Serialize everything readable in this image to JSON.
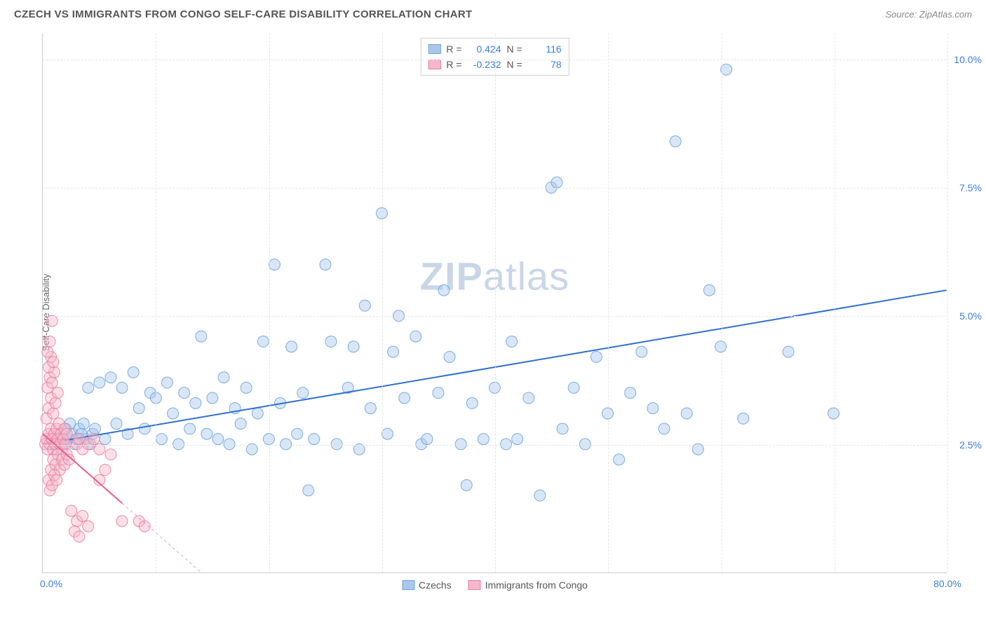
{
  "header": {
    "title": "CZECH VS IMMIGRANTS FROM CONGO SELF-CARE DISABILITY CORRELATION CHART",
    "source_prefix": "Source: ",
    "source_name": "ZipAtlas.com"
  },
  "ylabel": "Self-Care Disability",
  "watermark": {
    "bold": "ZIP",
    "light": "atlas"
  },
  "chart": {
    "type": "scatter",
    "xlim": [
      0,
      80
    ],
    "ylim": [
      0,
      10.5
    ],
    "x_ticks": [
      0,
      10,
      20,
      30,
      40,
      50,
      60,
      70,
      80
    ],
    "y_ticks": [
      2.5,
      5.0,
      7.5,
      10.0
    ],
    "x_tick_labels": [
      "0.0%",
      "",
      "",
      "",
      "",
      "",
      "",
      "",
      "80.0%"
    ],
    "y_tick_labels": [
      "2.5%",
      "5.0%",
      "7.5%",
      "10.0%"
    ],
    "background_color": "#ffffff",
    "grid_color": "#e5e5e5",
    "axis_color": "#cccccc",
    "tick_label_color": "#3b7dd8",
    "marker_radius": 8,
    "marker_opacity": 0.45,
    "marker_stroke_opacity": 0.9,
    "line_width": 2,
    "series": [
      {
        "name": "Czechs",
        "color_fill": "#a9c7ec",
        "color_stroke": "#6fa3df",
        "line_color": "#2f6fd0",
        "R": "0.424",
        "N": "116",
        "regression": {
          "x1": 0,
          "y1": 2.5,
          "x2": 80,
          "y2": 5.5,
          "dashed_after_x": null
        },
        "points": [
          [
            0.8,
            2.6
          ],
          [
            1.0,
            2.5
          ],
          [
            1.2,
            2.4
          ],
          [
            1.4,
            2.7
          ],
          [
            1.6,
            2.6
          ],
          [
            1.8,
            2.5
          ],
          [
            2.0,
            2.8
          ],
          [
            2.2,
            2.6
          ],
          [
            2.4,
            2.9
          ],
          [
            2.6,
            2.7
          ],
          [
            2.8,
            2.5
          ],
          [
            3.0,
            2.6
          ],
          [
            3.2,
            2.8
          ],
          [
            3.4,
            2.7
          ],
          [
            3.6,
            2.9
          ],
          [
            3.8,
            2.6
          ],
          [
            4.0,
            3.6
          ],
          [
            4.2,
            2.5
          ],
          [
            4.4,
            2.7
          ],
          [
            4.6,
            2.8
          ],
          [
            5.0,
            3.7
          ],
          [
            5.5,
            2.6
          ],
          [
            6.0,
            3.8
          ],
          [
            6.5,
            2.9
          ],
          [
            7.0,
            3.6
          ],
          [
            7.5,
            2.7
          ],
          [
            8.0,
            3.9
          ],
          [
            8.5,
            3.2
          ],
          [
            9.0,
            2.8
          ],
          [
            9.5,
            3.5
          ],
          [
            10.0,
            3.4
          ],
          [
            10.5,
            2.6
          ],
          [
            11.0,
            3.7
          ],
          [
            11.5,
            3.1
          ],
          [
            12.0,
            2.5
          ],
          [
            12.5,
            3.5
          ],
          [
            13.0,
            2.8
          ],
          [
            13.5,
            3.3
          ],
          [
            14.0,
            4.6
          ],
          [
            14.5,
            2.7
          ],
          [
            15.0,
            3.4
          ],
          [
            15.5,
            2.6
          ],
          [
            16.0,
            3.8
          ],
          [
            16.5,
            2.5
          ],
          [
            17.0,
            3.2
          ],
          [
            17.5,
            2.9
          ],
          [
            18.0,
            3.6
          ],
          [
            18.5,
            2.4
          ],
          [
            19.0,
            3.1
          ],
          [
            19.5,
            4.5
          ],
          [
            20.0,
            2.6
          ],
          [
            20.5,
            6.0
          ],
          [
            21.0,
            3.3
          ],
          [
            21.5,
            2.5
          ],
          [
            22.0,
            4.4
          ],
          [
            22.5,
            2.7
          ],
          [
            23.0,
            3.5
          ],
          [
            23.5,
            1.6
          ],
          [
            24.0,
            2.6
          ],
          [
            25.0,
            6.0
          ],
          [
            25.5,
            4.5
          ],
          [
            26.0,
            2.5
          ],
          [
            27.0,
            3.6
          ],
          [
            27.5,
            4.4
          ],
          [
            28.0,
            2.4
          ],
          [
            28.5,
            5.2
          ],
          [
            29.0,
            3.2
          ],
          [
            30.0,
            7.0
          ],
          [
            30.5,
            2.7
          ],
          [
            31.0,
            4.3
          ],
          [
            31.5,
            5.0
          ],
          [
            32.0,
            3.4
          ],
          [
            33.0,
            4.6
          ],
          [
            33.5,
            2.5
          ],
          [
            34.0,
            2.6
          ],
          [
            35.0,
            3.5
          ],
          [
            35.5,
            5.5
          ],
          [
            36.0,
            4.2
          ],
          [
            37.0,
            2.5
          ],
          [
            37.5,
            1.7
          ],
          [
            38.0,
            3.3
          ],
          [
            39.0,
            2.6
          ],
          [
            40.0,
            3.6
          ],
          [
            41.0,
            2.5
          ],
          [
            41.5,
            4.5
          ],
          [
            42.0,
            2.6
          ],
          [
            43.0,
            3.4
          ],
          [
            44.0,
            1.5
          ],
          [
            45.0,
            7.5
          ],
          [
            45.5,
            7.6
          ],
          [
            46.0,
            2.8
          ],
          [
            47.0,
            3.6
          ],
          [
            48.0,
            2.5
          ],
          [
            49.0,
            4.2
          ],
          [
            50.0,
            3.1
          ],
          [
            51.0,
            2.2
          ],
          [
            52.0,
            3.5
          ],
          [
            53.0,
            4.3
          ],
          [
            54.0,
            3.2
          ],
          [
            55.0,
            2.8
          ],
          [
            56.0,
            8.4
          ],
          [
            57.0,
            3.1
          ],
          [
            58.0,
            2.4
          ],
          [
            59.0,
            5.5
          ],
          [
            60.0,
            4.4
          ],
          [
            60.5,
            9.8
          ],
          [
            62.0,
            3.0
          ],
          [
            66.0,
            4.3
          ],
          [
            70.0,
            3.1
          ]
        ]
      },
      {
        "name": "Immigrants from Congo",
        "color_fill": "#f5b8ca",
        "color_stroke": "#ec7da0",
        "line_color": "#e85d8a",
        "R": "-0.232",
        "N": "78",
        "regression": {
          "x1": 0,
          "y1": 2.7,
          "x2": 14,
          "y2": 0,
          "dashed_after_x": 7
        },
        "points": [
          [
            0.2,
            2.5
          ],
          [
            0.3,
            2.6
          ],
          [
            0.4,
            2.4
          ],
          [
            0.5,
            2.7
          ],
          [
            0.6,
            2.5
          ],
          [
            0.7,
            2.8
          ],
          [
            0.8,
            2.6
          ],
          [
            0.9,
            2.4
          ],
          [
            1.0,
            2.7
          ],
          [
            1.1,
            2.5
          ],
          [
            1.2,
            2.8
          ],
          [
            1.3,
            2.6
          ],
          [
            1.4,
            2.9
          ],
          [
            1.5,
            2.5
          ],
          [
            1.6,
            2.7
          ],
          [
            1.7,
            2.4
          ],
          [
            1.8,
            2.6
          ],
          [
            1.9,
            2.8
          ],
          [
            2.0,
            2.5
          ],
          [
            2.1,
            2.7
          ],
          [
            0.3,
            3.0
          ],
          [
            0.5,
            3.2
          ],
          [
            0.7,
            3.4
          ],
          [
            0.9,
            3.1
          ],
          [
            1.1,
            3.3
          ],
          [
            1.3,
            3.5
          ],
          [
            0.4,
            3.6
          ],
          [
            0.6,
            3.8
          ],
          [
            0.8,
            3.7
          ],
          [
            1.0,
            3.9
          ],
          [
            0.5,
            4.0
          ],
          [
            0.7,
            4.2
          ],
          [
            0.9,
            4.1
          ],
          [
            0.4,
            4.3
          ],
          [
            0.6,
            4.5
          ],
          [
            0.8,
            4.9
          ],
          [
            0.5,
            1.8
          ],
          [
            0.7,
            2.0
          ],
          [
            0.9,
            2.2
          ],
          [
            1.1,
            2.1
          ],
          [
            1.3,
            2.3
          ],
          [
            1.5,
            2.0
          ],
          [
            1.7,
            2.2
          ],
          [
            1.9,
            2.1
          ],
          [
            2.1,
            2.3
          ],
          [
            2.3,
            2.2
          ],
          [
            0.6,
            1.6
          ],
          [
            0.8,
            1.7
          ],
          [
            1.0,
            1.9
          ],
          [
            1.2,
            1.8
          ],
          [
            3.0,
            2.5
          ],
          [
            3.2,
            2.6
          ],
          [
            3.5,
            2.4
          ],
          [
            4.0,
            2.5
          ],
          [
            4.5,
            2.6
          ],
          [
            5.0,
            2.4
          ],
          [
            3.0,
            1.0
          ],
          [
            3.5,
            1.1
          ],
          [
            2.8,
            0.8
          ],
          [
            4.0,
            0.9
          ],
          [
            3.2,
            0.7
          ],
          [
            2.5,
            1.2
          ],
          [
            5.0,
            1.8
          ],
          [
            5.5,
            2.0
          ],
          [
            6.0,
            2.3
          ],
          [
            7.0,
            1.0
          ],
          [
            8.5,
            1.0
          ],
          [
            9.0,
            0.9
          ]
        ]
      }
    ]
  },
  "legend_top": {
    "r_label": "R =",
    "n_label": "N ="
  },
  "legend_bottom": {
    "items": [
      "Czechs",
      "Immigrants from Congo"
    ]
  }
}
